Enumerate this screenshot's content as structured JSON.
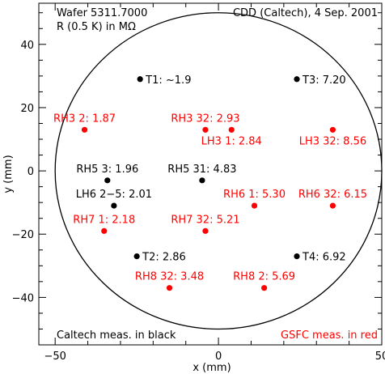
{
  "chart_data": {
    "type": "scatter",
    "title_left_1": "Wafer 5311.7000",
    "title_left_2": "R (0.5 K) in MΩ",
    "title_right": "CDD (Caltech), 4 Sep. 2001",
    "xlabel": "x (mm)",
    "ylabel": "y (mm)",
    "xlim": [
      -55,
      50
    ],
    "ylim": [
      -55,
      53
    ],
    "x_ticks": [
      -50,
      0,
      50
    ],
    "y_ticks": [
      -40,
      -20,
      0,
      20,
      40
    ],
    "x_tick_labels": [
      "−50",
      "0",
      "50"
    ],
    "y_tick_labels": [
      "−40",
      "−20",
      "0",
      "20",
      "40"
    ],
    "wafer_circle": {
      "cx": 0,
      "cy": 0,
      "r": 50
    },
    "footer_left": "Caltech meas. in black",
    "footer_right": "GSFC meas. in red",
    "colors": {
      "caltech": "#000000",
      "gsfc": "#ff0000"
    },
    "series": [
      {
        "name": "Caltech meas. in black",
        "color": "#000000",
        "points": [
          {
            "x": -24,
            "y": 29,
            "label": "T1: ~1.9",
            "label_pos": "right"
          },
          {
            "x": 24,
            "y": 29,
            "label": "T3: 7.20",
            "label_pos": "right"
          },
          {
            "x": -34,
            "y": -3,
            "label": "RH5 3: 1.96",
            "label_pos": "top"
          },
          {
            "x": -5,
            "y": -3,
            "label": "RH5 31: 4.83",
            "label_pos": "top"
          },
          {
            "x": -32,
            "y": -11,
            "label": "LH6 2−5: 2.01",
            "label_pos": "top"
          },
          {
            "x": -25,
            "y": -27,
            "label": "T2: 2.86",
            "label_pos": "right"
          },
          {
            "x": 24,
            "y": -27,
            "label": "T4: 6.92",
            "label_pos": "right"
          }
        ]
      },
      {
        "name": "GSFC meas. in red",
        "color": "#ff0000",
        "points": [
          {
            "x": -41,
            "y": 13,
            "label": "RH3 2: 1.87",
            "label_pos": "top"
          },
          {
            "x": -4,
            "y": 13,
            "label": "RH3 32: 2.93",
            "label_pos": "top"
          },
          {
            "x": 4,
            "y": 13,
            "label": "LH3 1: 2.84",
            "label_pos": "bottom"
          },
          {
            "x": 35,
            "y": 13,
            "label": "LH3 32: 8.56",
            "label_pos": "bottom"
          },
          {
            "x": 11,
            "y": -11,
            "label": "RH6 1: 5.30",
            "label_pos": "top"
          },
          {
            "x": 35,
            "y": -11,
            "label": "RH6 32: 6.15",
            "label_pos": "top"
          },
          {
            "x": -35,
            "y": -19,
            "label": "RH7 1: 2.18",
            "label_pos": "top"
          },
          {
            "x": -4,
            "y": -19,
            "label": "RH7 32: 5.21",
            "label_pos": "top"
          },
          {
            "x": -15,
            "y": -37,
            "label": "RH8 32: 3.48",
            "label_pos": "top"
          },
          {
            "x": 14,
            "y": -37,
            "label": "RH8 2: 5.69",
            "label_pos": "top"
          }
        ]
      }
    ]
  }
}
